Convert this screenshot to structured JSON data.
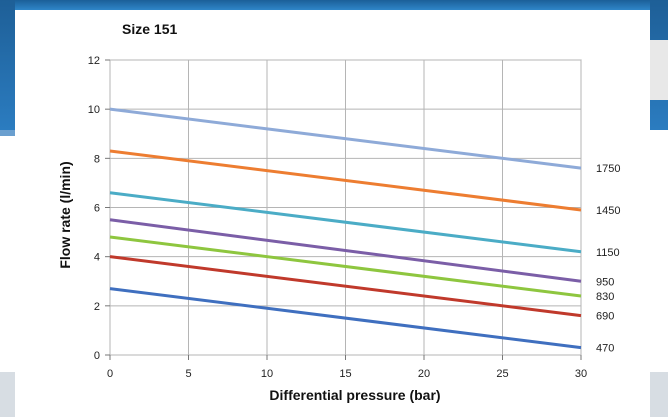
{
  "chart_data": {
    "type": "line",
    "title": "Size 151",
    "xlabel": "Differential pressure (bar)",
    "ylabel": "Flow rate (l/min)",
    "xlim": [
      0,
      30
    ],
    "ylim": [
      0,
      12
    ],
    "xticks": [
      "0",
      "5",
      "10",
      "15",
      "20",
      "25",
      "30"
    ],
    "yticks": [
      "0",
      "2",
      "4",
      "6",
      "8",
      "10",
      "12"
    ],
    "grid": true,
    "series": [
      {
        "name": "1750",
        "color": "#8eaad8",
        "x": [
          0,
          30
        ],
        "y": [
          10.0,
          7.6
        ]
      },
      {
        "name": "1450",
        "color": "#ed7d31",
        "x": [
          0,
          30
        ],
        "y": [
          8.3,
          5.9
        ]
      },
      {
        "name": "1150",
        "color": "#4bacc6",
        "x": [
          0,
          30
        ],
        "y": [
          6.6,
          4.2
        ]
      },
      {
        "name": "950",
        "color": "#7b5ea7",
        "x": [
          0,
          30
        ],
        "y": [
          5.5,
          3.0
        ]
      },
      {
        "name": "830",
        "color": "#8ec63f",
        "x": [
          0,
          30
        ],
        "y": [
          4.8,
          2.4
        ]
      },
      {
        "name": "690",
        "color": "#c0392b",
        "x": [
          0,
          30
        ],
        "y": [
          4.0,
          1.6
        ]
      },
      {
        "name": "470",
        "color": "#3f6fbf",
        "x": [
          0,
          30
        ],
        "y": [
          2.7,
          0.3
        ]
      }
    ]
  }
}
